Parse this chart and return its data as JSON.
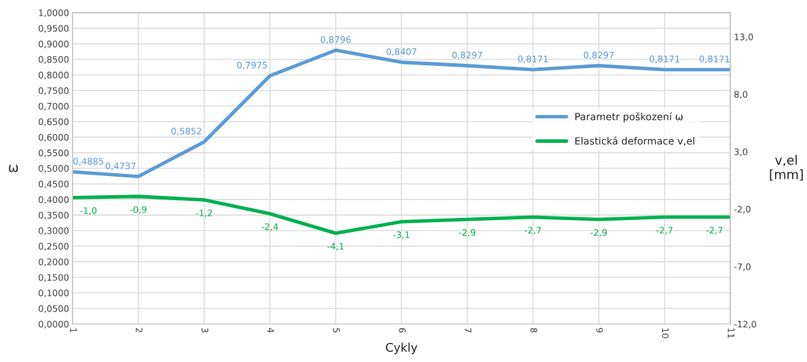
{
  "chart_data": {
    "type": "line",
    "xlabel": "Cykly",
    "ylabel": "ω",
    "y2label": "v,el\n[mm]",
    "x": [
      1,
      2,
      3,
      4,
      5,
      6,
      7,
      8,
      9,
      10,
      11
    ],
    "xlim": [
      1,
      11
    ],
    "xticks": [
      1,
      2,
      3,
      4,
      5,
      6,
      7,
      8,
      9,
      10,
      11
    ],
    "ylim": [
      0,
      1
    ],
    "yticks": [
      {
        "value": 0,
        "label": "0,0000"
      },
      {
        "value": 0.05,
        "label": "0,0500"
      },
      {
        "value": 0.1,
        "label": "0,1000"
      },
      {
        "value": 0.15,
        "label": "0,1500"
      },
      {
        "value": 0.2,
        "label": "0,2000"
      },
      {
        "value": 0.25,
        "label": "0,2500"
      },
      {
        "value": 0.3,
        "label": "0,3000"
      },
      {
        "value": 0.35,
        "label": "0,3500"
      },
      {
        "value": 0.4,
        "label": "0,4000"
      },
      {
        "value": 0.45,
        "label": "0,4500"
      },
      {
        "value": 0.5,
        "label": "0,5000"
      },
      {
        "value": 0.55,
        "label": "0,5500"
      },
      {
        "value": 0.6,
        "label": "0,6000"
      },
      {
        "value": 0.65,
        "label": "0,6500"
      },
      {
        "value": 0.7,
        "label": "0,7000"
      },
      {
        "value": 0.75,
        "label": "0,7500"
      },
      {
        "value": 0.8,
        "label": "0,8000"
      },
      {
        "value": 0.85,
        "label": "0,8500"
      },
      {
        "value": 0.9,
        "label": "0,9000"
      },
      {
        "value": 0.95,
        "label": "0,9500"
      },
      {
        "value": 1,
        "label": "1,0000"
      }
    ],
    "y2lim": [
      -12,
      15.1
    ],
    "y2ticks": [
      {
        "value": -12,
        "label": "-12,0"
      },
      {
        "value": -7,
        "label": "-7,0"
      },
      {
        "value": -2,
        "label": "-2,0"
      },
      {
        "value": 3,
        "label": "3,0"
      },
      {
        "value": 8,
        "label": "8,0"
      },
      {
        "value": 13,
        "label": "13,0"
      }
    ],
    "grid": true,
    "legend": "right",
    "marker": "none",
    "line_style": "solid",
    "series": [
      {
        "name": "Parametr poškození ω",
        "color": "#5b9bd5",
        "values": [
          0.4885,
          0.4737,
          0.5852,
          0.7975,
          0.8796,
          0.8407,
          0.8297,
          0.8171,
          0.8297,
          0.8171,
          0.8171
        ],
        "value_labels": [
          "0,4885",
          "0,4737",
          "0,5852",
          "0,7975",
          "0,8796",
          "0,8407",
          "0,8297",
          "0,8171",
          "0,8297",
          "0,8171",
          "0,8171"
        ]
      },
      {
        "name": "Elastická deformace v,el",
        "color": "#00b050",
        "axis": "y2",
        "values": [
          -1.0,
          -0.9,
          -1.2,
          -2.4,
          -4.1,
          -3.1,
          -2.9,
          -2.7,
          -2.9,
          -2.7,
          -2.7
        ],
        "value_labels": [
          "-1,0",
          "-0,9",
          "-1,2",
          "-2,4",
          "-4,1",
          "-3,1",
          "-2,9",
          "-2,7",
          "-2,9",
          "-2,7",
          "-2,7"
        ]
      }
    ]
  }
}
